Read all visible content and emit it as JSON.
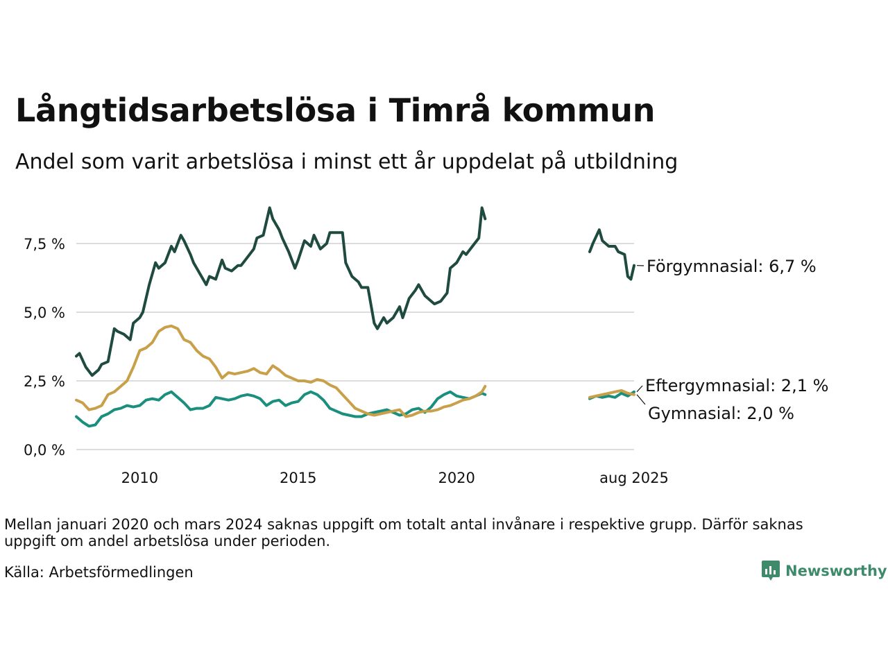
{
  "title": "Långtidsarbetslösa i Timrå kommun",
  "subtitle": "Andel som varit arbetslösa i minst ett år uppdelat på utbildning",
  "note": "Mellan januari 2020 och mars 2024 saknas uppgift om totalt antal invånare i respektive grupp. Därför saknas uppgift om andel arbetslösa under perioden.",
  "source": "Källa: Arbetsförmedlingen",
  "brand": "Newsworthy",
  "chart_data": {
    "type": "line",
    "x_axis": {
      "type": "time",
      "tick_labels": [
        "2010",
        "2015",
        "2020",
        "aug 2025"
      ],
      "tick_values": [
        2010,
        2015,
        2020,
        2025.6
      ]
    },
    "y_axis": {
      "tick_labels": [
        "0,0 %",
        "2,5 %",
        "5,0 %",
        "7,5 %"
      ],
      "tick_values": [
        0,
        2.5,
        5,
        7.5
      ],
      "ylim": [
        0,
        9
      ],
      "grid": true
    },
    "gap_note": "data missing between 2021 and 2024",
    "series": [
      {
        "name": "Förgymnasial",
        "label": "Förgymnasial: 6,7 %",
        "color": "#1f4a3f",
        "segments": [
          {
            "x": [
              2008.0,
              2008.1,
              2008.3,
              2008.5,
              2008.7,
              2008.8,
              2009.0,
              2009.2,
              2009.3,
              2009.5,
              2009.7,
              2009.8,
              2010.0,
              2010.1,
              2010.3,
              2010.5,
              2010.6,
              2010.8,
              2011.0,
              2011.1,
              2011.3,
              2011.4,
              2011.6,
              2011.7,
              2011.9,
              2012.1,
              2012.2,
              2012.4,
              2012.6,
              2012.7,
              2012.9,
              2013.1,
              2013.2,
              2013.4,
              2013.6,
              2013.7,
              2013.9,
              2014.1,
              2014.2,
              2014.4,
              2014.5,
              2014.7,
              2014.9,
              2015.0,
              2015.2,
              2015.4,
              2015.5,
              2015.7,
              2015.9,
              2016.0,
              2016.2,
              2016.4,
              2016.5,
              2016.7,
              2016.9,
              2017.0,
              2017.2,
              2017.4,
              2017.5,
              2017.7,
              2017.8,
              2018.0,
              2018.2,
              2018.3,
              2018.5,
              2018.7,
              2018.8,
              2019.0,
              2019.2,
              2019.3,
              2019.5,
              2019.7,
              2019.8,
              2020.0,
              2020.2,
              2020.3,
              2020.5,
              2020.7,
              2020.8,
              2020.9
            ],
            "y": [
              3.4,
              3.5,
              3.0,
              2.7,
              2.9,
              3.1,
              3.2,
              4.4,
              4.3,
              4.2,
              4.0,
              4.6,
              4.8,
              5.0,
              6.0,
              6.8,
              6.6,
              6.8,
              7.4,
              7.2,
              7.8,
              7.6,
              7.1,
              6.8,
              6.4,
              6.0,
              6.3,
              6.2,
              6.9,
              6.6,
              6.5,
              6.7,
              6.7,
              7.0,
              7.3,
              7.7,
              7.8,
              8.8,
              8.4,
              8.0,
              7.7,
              7.2,
              6.6,
              6.9,
              7.6,
              7.4,
              7.8,
              7.3,
              7.5,
              7.9,
              7.9,
              7.9,
              6.8,
              6.3,
              6.1,
              5.9,
              5.9,
              4.6,
              4.4,
              4.8,
              4.6,
              4.8,
              5.2,
              4.8,
              5.5,
              5.8,
              6.0,
              5.6,
              5.4,
              5.3,
              5.4,
              5.7,
              6.6,
              6.8,
              7.2,
              7.1,
              7.4,
              7.7,
              8.8,
              8.4
            ]
          },
          {
            "x": [
              2024.2,
              2024.3,
              2024.5,
              2024.6,
              2024.8,
              2025.0,
              2025.1,
              2025.3,
              2025.4,
              2025.5,
              2025.6
            ],
            "y": [
              7.2,
              7.5,
              8.0,
              7.6,
              7.4,
              7.4,
              7.2,
              7.1,
              6.3,
              6.2,
              6.7
            ]
          }
        ]
      },
      {
        "name": "Eftergymnasial",
        "label": "Eftergymnasial: 2,1 %",
        "color": "#1a8f7e",
        "segments": [
          {
            "x": [
              2008.0,
              2008.2,
              2008.4,
              2008.6,
              2008.8,
              2009.0,
              2009.2,
              2009.4,
              2009.6,
              2009.8,
              2010.0,
              2010.2,
              2010.4,
              2010.6,
              2010.8,
              2011.0,
              2011.2,
              2011.4,
              2011.6,
              2011.8,
              2012.0,
              2012.2,
              2012.4,
              2012.6,
              2012.8,
              2013.0,
              2013.2,
              2013.4,
              2013.6,
              2013.8,
              2014.0,
              2014.2,
              2014.4,
              2014.6,
              2014.8,
              2015.0,
              2015.2,
              2015.4,
              2015.6,
              2015.8,
              2016.0,
              2016.2,
              2016.4,
              2016.6,
              2016.8,
              2017.0,
              2017.2,
              2017.4,
              2017.6,
              2017.8,
              2018.0,
              2018.2,
              2018.4,
              2018.6,
              2018.8,
              2019.0,
              2019.2,
              2019.4,
              2019.6,
              2019.8,
              2020.0,
              2020.2,
              2020.4,
              2020.6,
              2020.8,
              2020.9
            ],
            "y": [
              1.2,
              1.0,
              0.85,
              0.9,
              1.2,
              1.3,
              1.45,
              1.5,
              1.6,
              1.55,
              1.6,
              1.8,
              1.85,
              1.8,
              2.0,
              2.1,
              1.9,
              1.7,
              1.45,
              1.5,
              1.5,
              1.6,
              1.9,
              1.85,
              1.8,
              1.85,
              1.95,
              2.0,
              1.95,
              1.85,
              1.6,
              1.75,
              1.8,
              1.6,
              1.7,
              1.75,
              2.0,
              2.1,
              2.0,
              1.8,
              1.5,
              1.4,
              1.3,
              1.25,
              1.2,
              1.2,
              1.3,
              1.35,
              1.4,
              1.45,
              1.35,
              1.25,
              1.3,
              1.45,
              1.5,
              1.35,
              1.55,
              1.85,
              2.0,
              2.1,
              1.95,
              1.9,
              1.85,
              1.95,
              2.05,
              2.0
            ]
          },
          {
            "x": [
              2024.2,
              2024.4,
              2024.6,
              2024.8,
              2025.0,
              2025.2,
              2025.4,
              2025.6
            ],
            "y": [
              1.85,
              1.95,
              1.9,
              1.95,
              1.9,
              2.05,
              1.95,
              2.1
            ]
          }
        ]
      },
      {
        "name": "Gymnasial",
        "label": "Gymnasial: 2,0 %",
        "color": "#c9a04a",
        "segments": [
          {
            "x": [
              2008.0,
              2008.2,
              2008.4,
              2008.6,
              2008.8,
              2009.0,
              2009.2,
              2009.4,
              2009.6,
              2009.8,
              2010.0,
              2010.2,
              2010.4,
              2010.6,
              2010.8,
              2011.0,
              2011.2,
              2011.4,
              2011.6,
              2011.8,
              2012.0,
              2012.2,
              2012.4,
              2012.6,
              2012.8,
              2013.0,
              2013.2,
              2013.4,
              2013.6,
              2013.8,
              2014.0,
              2014.2,
              2014.4,
              2014.6,
              2014.8,
              2015.0,
              2015.2,
              2015.4,
              2015.6,
              2015.8,
              2016.0,
              2016.2,
              2016.4,
              2016.6,
              2016.8,
              2017.0,
              2017.2,
              2017.4,
              2017.6,
              2017.8,
              2018.0,
              2018.2,
              2018.4,
              2018.6,
              2018.8,
              2019.0,
              2019.2,
              2019.4,
              2019.6,
              2019.8,
              2020.0,
              2020.2,
              2020.4,
              2020.6,
              2020.8,
              2020.9
            ],
            "y": [
              1.8,
              1.7,
              1.45,
              1.5,
              1.6,
              2.0,
              2.1,
              2.3,
              2.5,
              3.0,
              3.6,
              3.7,
              3.9,
              4.3,
              4.45,
              4.5,
              4.4,
              4.0,
              3.9,
              3.6,
              3.4,
              3.3,
              3.0,
              2.6,
              2.8,
              2.75,
              2.8,
              2.85,
              2.95,
              2.8,
              2.75,
              3.05,
              2.9,
              2.7,
              2.6,
              2.5,
              2.5,
              2.45,
              2.55,
              2.5,
              2.35,
              2.25,
              2.0,
              1.75,
              1.5,
              1.4,
              1.3,
              1.25,
              1.3,
              1.35,
              1.4,
              1.45,
              1.2,
              1.25,
              1.35,
              1.4,
              1.4,
              1.45,
              1.55,
              1.6,
              1.7,
              1.8,
              1.85,
              1.95,
              2.1,
              2.3
            ]
          },
          {
            "x": [
              2024.2,
              2024.4,
              2024.6,
              2024.8,
              2025.0,
              2025.2,
              2025.4,
              2025.6
            ],
            "y": [
              1.9,
              1.95,
              2.0,
              2.05,
              2.1,
              2.15,
              2.05,
              2.0
            ]
          }
        ]
      }
    ]
  }
}
